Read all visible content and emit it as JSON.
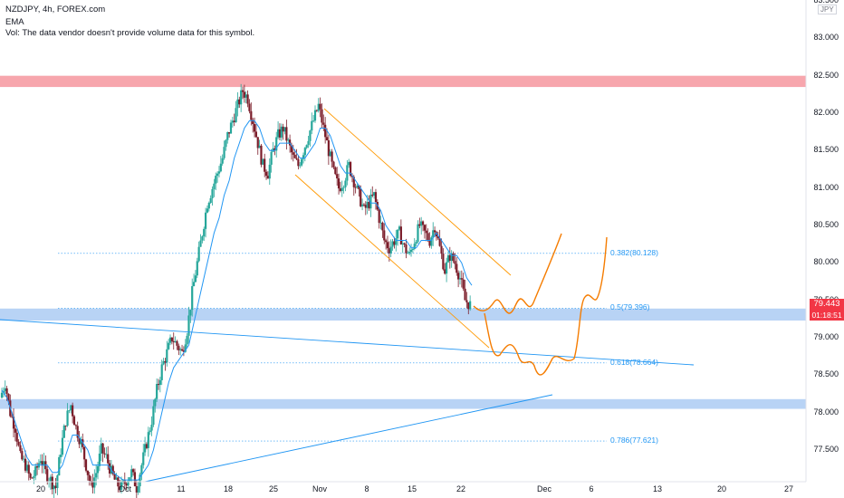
{
  "header": {
    "symbol_line": "NZDJPY, 4h, FOREX.com",
    "indicator": "EMA",
    "volume_note": "Vol: The data vendor doesn't provide volume data for this symbol."
  },
  "currency_label": "JPY",
  "last_price": {
    "value": "79.443",
    "countdown": "01:18:51",
    "color": "#f23645"
  },
  "colors": {
    "up": "#26a69a",
    "down": "#7b1d2a",
    "ema": "#2196f3",
    "resistance_zone": "#f7a6ad",
    "support_zone": "#b8d3f5",
    "channel": "#ff9800",
    "projection": "#f57c00",
    "trendline": "#2196f3",
    "fib": "#2196f3"
  },
  "chart_data": {
    "type": "candlestick",
    "title": "NZDJPY, 4h, FOREX.com",
    "y_axis": {
      "ticks": [
        "77.500",
        "78.000",
        "78.500",
        "79.000",
        "79.500",
        "80.000",
        "80.500",
        "81.000",
        "81.500",
        "82.000",
        "82.500",
        "83.000",
        "83.500"
      ],
      "range": [
        76.9,
        83.6
      ]
    },
    "x_axis": {
      "ticks": [
        "20",
        "Oct",
        "11",
        "18",
        "25",
        "Nov",
        "8",
        "15",
        "22",
        "Dec",
        "6",
        "13",
        "20",
        "27"
      ]
    },
    "price_path": [
      78.2,
      78.4,
      78.0,
      77.8,
      77.4,
      77.3,
      77.1,
      77.2,
      77.4,
      77.2,
      77.1,
      77.0,
      77.5,
      77.9,
      78.1,
      77.8,
      77.6,
      77.3,
      77.0,
      77.2,
      77.5,
      77.4,
      77.2,
      77.05,
      77.0,
      77.1,
      77.2,
      77.0,
      77.3,
      77.6,
      77.9,
      78.3,
      78.6,
      78.8,
      79.0,
      78.9,
      78.8,
      79.1,
      79.6,
      80.0,
      80.4,
      80.8,
      81.0,
      81.2,
      81.4,
      81.7,
      81.9,
      82.1,
      82.3,
      82.2,
      81.9,
      81.6,
      81.3,
      81.2,
      81.5,
      81.7,
      81.8,
      81.6,
      81.4,
      81.3,
      81.5,
      81.7,
      81.9,
      82.1,
      81.8,
      81.5,
      81.2,
      81.0,
      81.1,
      81.3,
      81.1,
      80.9,
      80.7,
      80.8,
      80.9,
      80.6,
      80.3,
      80.2,
      80.3,
      80.4,
      80.2,
      80.1,
      80.3,
      80.5,
      80.4,
      80.3,
      80.5,
      80.2,
      79.9,
      80.1,
      80.0,
      79.8,
      79.5,
      79.44
    ],
    "ema_path": [
      78.3,
      78.2,
      78.0,
      77.8,
      77.6,
      77.4,
      77.3,
      77.3,
      77.3,
      77.3,
      77.2,
      77.2,
      77.3,
      77.5,
      77.7,
      77.7,
      77.6,
      77.5,
      77.3,
      77.3,
      77.3,
      77.3,
      77.2,
      77.15,
      77.1,
      77.1,
      77.1,
      77.1,
      77.2,
      77.3,
      77.5,
      77.8,
      78.1,
      78.4,
      78.6,
      78.7,
      78.8,
      78.9,
      79.2,
      79.5,
      79.8,
      80.1,
      80.4,
      80.6,
      80.9,
      81.1,
      81.4,
      81.6,
      81.8,
      81.9,
      81.9,
      81.8,
      81.6,
      81.5,
      81.5,
      81.6,
      81.6,
      81.6,
      81.5,
      81.4,
      81.4,
      81.5,
      81.6,
      81.8,
      81.8,
      81.7,
      81.5,
      81.3,
      81.2,
      81.2,
      81.1,
      81.0,
      80.9,
      80.8,
      80.8,
      80.7,
      80.5,
      80.4,
      80.3,
      80.3,
      80.3,
      80.2,
      80.2,
      80.3,
      80.3,
      80.3,
      80.4,
      80.3,
      80.2,
      80.1,
      80.1,
      80.0,
      79.8,
      79.7
    ],
    "resistance_zone": [
      82.35,
      82.5
    ],
    "support_zones": [
      [
        79.23,
        79.39
      ],
      [
        78.05,
        78.18
      ]
    ],
    "channel": {
      "upper": [
        [
          82.05,
          0.352
        ],
        [
          79.85,
          0.566
        ]
      ],
      "lower": [
        [
          81.17,
          0.326
        ],
        [
          78.8,
          0.534
        ]
      ]
    },
    "fib_levels": [
      {
        "label": "0.382(80.128)",
        "value": 80.128
      },
      {
        "label": "0.5(79.396)",
        "value": 79.396
      },
      {
        "label": "0.618(78.664)",
        "value": 78.664
      },
      {
        "label": "0.786(77.621)",
        "value": 77.621
      }
    ],
    "grid": false,
    "last_price": 79.443
  }
}
